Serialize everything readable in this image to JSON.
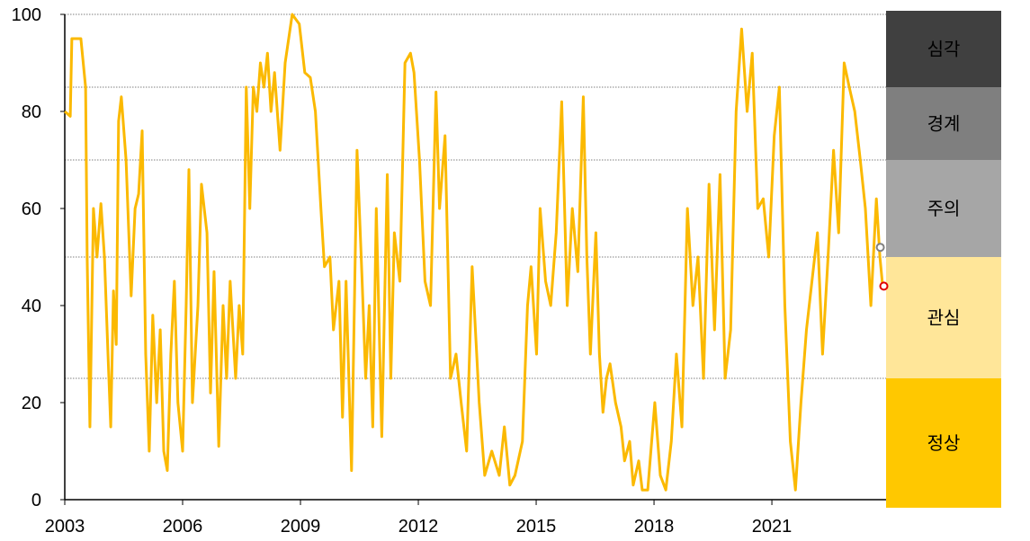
{
  "chart_data": {
    "type": "line",
    "x": [
      2003.0,
      2003.14,
      2003.18,
      2003.41,
      2003.53,
      2003.57,
      2003.64,
      2003.73,
      2003.82,
      2003.92,
      2004.01,
      2004.1,
      2004.17,
      2004.24,
      2004.31,
      2004.37,
      2004.44,
      2004.56,
      2004.69,
      2004.79,
      2004.88,
      2004.97,
      2005.06,
      2005.15,
      2005.24,
      2005.34,
      2005.43,
      2005.52,
      2005.61,
      2005.7,
      2005.79,
      2005.88,
      2006.0,
      2006.09,
      2006.16,
      2006.25,
      2006.39,
      2006.48,
      2006.62,
      2006.71,
      2006.8,
      2006.92,
      2007.03,
      2007.12,
      2007.21,
      2007.35,
      2007.44,
      2007.53,
      2007.62,
      2007.71,
      2007.8,
      2007.89,
      2007.98,
      2008.07,
      2008.16,
      2008.25,
      2008.34,
      2008.48,
      2008.61,
      2008.79,
      2008.97,
      2009.11,
      2009.25,
      2009.38,
      2009.52,
      2009.61,
      2009.75,
      2009.84,
      2009.98,
      2010.07,
      2010.16,
      2010.3,
      2010.44,
      2010.57,
      2010.66,
      2010.75,
      2010.84,
      2010.93,
      2011.07,
      2011.21,
      2011.3,
      2011.39,
      2011.53,
      2011.66,
      2011.8,
      2011.89,
      2012.03,
      2012.17,
      2012.31,
      2012.45,
      2012.54,
      2012.68,
      2012.82,
      2012.96,
      2013.09,
      2013.23,
      2013.37,
      2013.55,
      2013.69,
      2013.87,
      2014.06,
      2014.19,
      2014.33,
      2014.46,
      2014.65,
      2014.78,
      2014.87,
      2015.01,
      2015.1,
      2015.24,
      2015.37,
      2015.51,
      2015.65,
      2015.79,
      2015.92,
      2016.06,
      2016.2,
      2016.29,
      2016.38,
      2016.52,
      2016.61,
      2016.7,
      2016.79,
      2016.88,
      2017.02,
      2017.16,
      2017.25,
      2017.38,
      2017.47,
      2017.61,
      2017.7,
      2017.84,
      2018.02,
      2018.16,
      2018.3,
      2018.44,
      2018.57,
      2018.71,
      2018.85,
      2018.99,
      2019.12,
      2019.26,
      2019.4,
      2019.54,
      2019.68,
      2019.81,
      2019.95,
      2020.09,
      2020.23,
      2020.37,
      2020.5,
      2020.64,
      2020.78,
      2020.92,
      2021.06,
      2021.19,
      2021.33,
      2021.47,
      2021.6,
      2021.74,
      2021.88,
      2022.02,
      2022.16,
      2022.29,
      2022.43,
      2022.57,
      2022.7,
      2022.84,
      2022.97,
      2023.11,
      2023.25,
      2023.38,
      2023.52,
      2023.66,
      2023.75,
      2023.82
    ],
    "values": [
      80,
      79,
      95,
      95,
      85,
      50,
      15,
      60,
      50,
      61,
      50,
      30,
      15,
      43,
      32,
      78,
      83,
      70,
      42,
      60,
      63,
      76,
      30,
      10,
      38,
      20,
      35,
      10,
      6,
      30,
      45,
      20,
      10,
      40,
      68,
      20,
      40,
      65,
      55,
      22,
      47,
      11,
      40,
      25,
      45,
      25,
      40,
      30,
      85,
      60,
      85,
      80,
      90,
      85,
      92,
      80,
      88,
      72,
      90,
      100,
      98,
      88,
      87,
      80,
      60,
      48,
      50,
      35,
      45,
      17,
      45,
      6,
      72,
      45,
      25,
      40,
      15,
      60,
      13,
      67,
      25,
      55,
      45,
      90,
      92,
      88,
      70,
      45,
      40,
      84,
      60,
      75,
      25,
      30,
      20,
      10,
      48,
      20,
      5,
      10,
      5,
      15,
      3,
      5,
      12,
      40,
      48,
      30,
      60,
      45,
      40,
      55,
      82,
      40,
      60,
      47,
      83,
      50,
      30,
      55,
      30,
      18,
      25,
      28,
      20,
      15,
      8,
      12,
      3,
      8,
      2,
      2,
      20,
      5,
      2,
      12,
      30,
      15,
      60,
      40,
      50,
      25,
      65,
      35,
      67,
      25,
      35,
      80,
      97,
      80,
      92,
      60,
      62,
      50,
      75,
      85,
      40,
      12,
      2,
      20,
      35,
      45,
      55,
      30,
      50,
      72,
      55,
      90,
      85,
      80,
      70,
      60,
      40,
      62,
      50,
      44
    ],
    "color": "#fbb900",
    "xlim": [
      2003,
      2023.9
    ],
    "xticks": [
      2003,
      2006,
      2009,
      2012,
      2015,
      2018,
      2021
    ],
    "ylim": [
      0,
      100
    ],
    "yticks": [
      0,
      20,
      40,
      60,
      80,
      100
    ],
    "threshold_lines": [
      25,
      50,
      70,
      85,
      100
    ],
    "markers": [
      {
        "x": 2023.76,
        "value": 52,
        "color": "#808080"
      },
      {
        "x": 2023.85,
        "value": 44,
        "color": "#e00000"
      }
    ],
    "zones": [
      {
        "label": "심각",
        "from": 85,
        "to": 100,
        "color": "#404040",
        "text_color": "#ffffff"
      },
      {
        "label": "경계",
        "from": 70,
        "to": 85,
        "color": "#7f7f7f",
        "text_color": "#ffffff"
      },
      {
        "label": "주의",
        "from": 50,
        "to": 70,
        "color": "#a6a6a6",
        "text_color": "#000000"
      },
      {
        "label": "관심",
        "from": 25,
        "to": 50,
        "color": "#ffe699",
        "text_color": "#000000"
      },
      {
        "label": "정상",
        "from": 0,
        "to": 25,
        "color": "#ffc800",
        "text_color": "#000000"
      }
    ]
  }
}
